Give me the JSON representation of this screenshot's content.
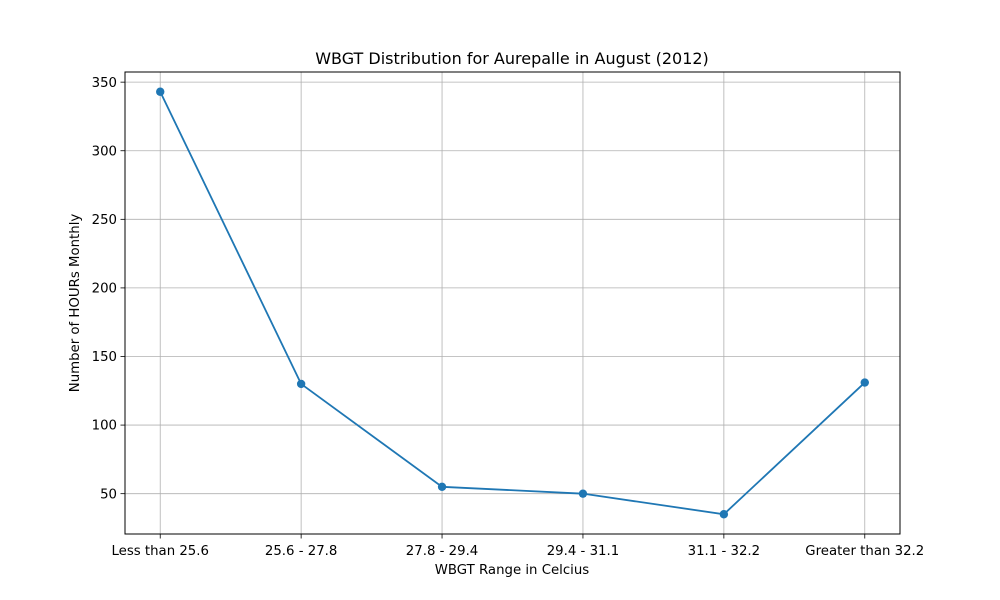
{
  "chart_data": {
    "type": "line",
    "title": "WBGT Distribution for Aurepalle in August (2012)",
    "xlabel": "WBGT Range in Celcius",
    "ylabel": "Number of HOURs Monthly",
    "categories": [
      "Less than 25.6",
      "25.6 - 27.8",
      "27.8 - 29.4",
      "29.4 - 31.1",
      "31.1 - 32.2",
      "Greater than 32.2"
    ],
    "series": [
      {
        "values": [
          343,
          130,
          55,
          50,
          35,
          131
        ]
      }
    ],
    "ylim": [
      20.6,
      357.4
    ],
    "yticks": [
      50,
      100,
      150,
      200,
      250,
      300,
      350
    ],
    "grid": true,
    "line_color": "#1f77b4",
    "marker": "circle"
  }
}
